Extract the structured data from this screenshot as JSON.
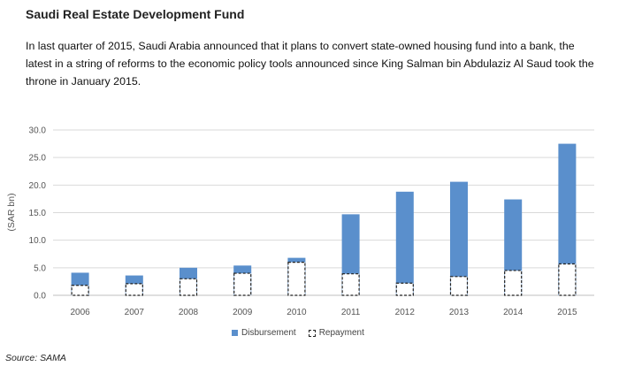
{
  "header": {
    "title": "Saudi Real Estate Development Fund",
    "paragraph": "In last quarter of 2015, Saudi Arabia announced that it plans to convert state-owned housing fund into a bank, the latest in a string of reforms to the economic policy tools announced since King Salman bin Abdulaziz Al Saud took the throne in January 2015."
  },
  "source": "Source: SAMA",
  "colors": {
    "disbursement": "#5a8fcc",
    "repayment_border": "#222222",
    "grid": "#d9d9d9"
  },
  "chart_data": {
    "type": "bar",
    "categories": [
      "2006",
      "2007",
      "2008",
      "2009",
      "2010",
      "2011",
      "2012",
      "2013",
      "2014",
      "2015"
    ],
    "series": [
      {
        "name": "Disbursement",
        "values": [
          4.1,
          3.6,
          5.0,
          5.4,
          6.8,
          14.7,
          18.8,
          20.6,
          17.4,
          27.5
        ]
      },
      {
        "name": "Repayment",
        "values": [
          1.8,
          2.1,
          3.0,
          4.0,
          6.0,
          3.9,
          2.2,
          3.4,
          4.5,
          5.7
        ]
      }
    ],
    "xlabel": "",
    "ylabel": "(SAR bn)",
    "ylim": [
      0,
      30
    ],
    "yticks": [
      "0.0",
      "5.0",
      "10.0",
      "15.0",
      "20.0",
      "25.0",
      "30.0"
    ],
    "grid": true,
    "legend_position": "bottom",
    "repayment_style": "dashed outline overlaid on disbursement bar"
  }
}
